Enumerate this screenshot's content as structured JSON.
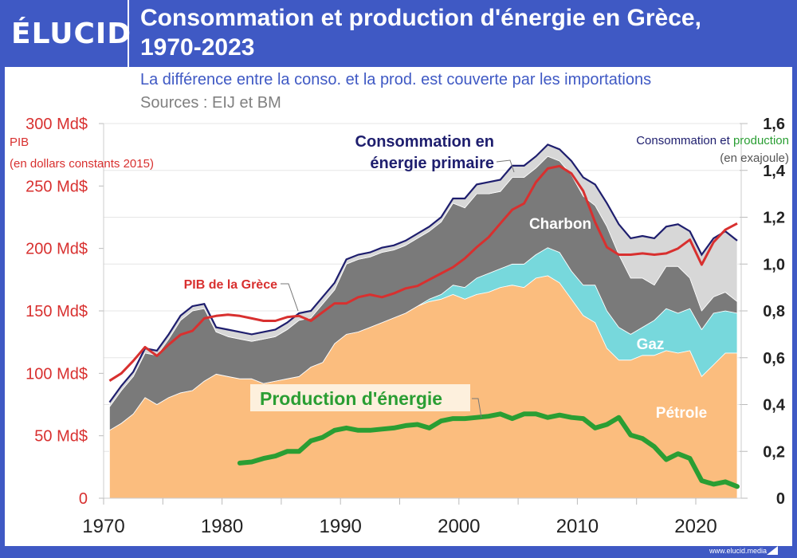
{
  "header": {
    "logo": "ÉLUCID",
    "title_line1": "Consommation et production d'énergie en Grèce,",
    "title_line2": "1970-2023"
  },
  "footer": {
    "url": "www.elucid.media"
  },
  "colors": {
    "frame": "#3f59c4",
    "oil": "#fbbd7e",
    "gas": "#77d8dc",
    "coal": "#7a7a7a",
    "other": "#d7d7d7",
    "total": "#1e1e6e",
    "gdp": "#d8302f",
    "production": "#2a9e33"
  },
  "chart_data": {
    "type": "area",
    "title": "Consommation et production d'énergie en Grèce, 1970-2023",
    "subtitle": "La différence entre la conso. et la prod. est couverte par les importations",
    "source": "Sources : EIJ et BM",
    "left_axis": {
      "label_line1": "PIB",
      "label_line2": "(en dollars constants 2015)",
      "ylim": [
        0,
        300
      ],
      "ticks": [
        "0",
        "50 Md$",
        "100 Md$",
        "150 Md$",
        "200 Md$",
        "250 Md$",
        "300 Md$"
      ],
      "tick_values": [
        0,
        50,
        100,
        150,
        200,
        250,
        300
      ]
    },
    "right_axis": {
      "label_prefix": "Consommation et ",
      "label_highlight": "production",
      "label_line2": "(en exajoule)",
      "ylim": [
        0,
        1.6
      ],
      "ticks": [
        "0",
        "0,2",
        "0,4",
        "0,6",
        "0,8",
        "1,0",
        "1,2",
        "1,4",
        "1,6"
      ],
      "tick_values": [
        0,
        0.2,
        0.4,
        0.6,
        0.8,
        1.0,
        1.2,
        1.4,
        1.6
      ]
    },
    "x_ticks": [
      "1970",
      "1980",
      "1990",
      "2000",
      "2010",
      "2020"
    ],
    "x_tick_values": [
      1970,
      1980,
      1990,
      2000,
      2010,
      2020
    ],
    "grid": true,
    "years": [
      1970,
      1971,
      1972,
      1973,
      1974,
      1975,
      1976,
      1977,
      1978,
      1979,
      1980,
      1981,
      1982,
      1983,
      1984,
      1985,
      1986,
      1987,
      1988,
      1989,
      1990,
      1991,
      1992,
      1993,
      1994,
      1995,
      1996,
      1997,
      1998,
      1999,
      2000,
      2001,
      2002,
      2003,
      2004,
      2005,
      2006,
      2007,
      2008,
      2009,
      2010,
      2011,
      2012,
      2013,
      2014,
      2015,
      2016,
      2017,
      2018,
      2019,
      2020,
      2021,
      2022,
      2023
    ],
    "stack": [
      {
        "name": "Pétrole",
        "color": "#fbbd7e",
        "values": [
          0.29,
          0.32,
          0.36,
          0.43,
          0.4,
          0.43,
          0.45,
          0.46,
          0.5,
          0.53,
          0.52,
          0.51,
          0.51,
          0.49,
          0.5,
          0.51,
          0.52,
          0.56,
          0.58,
          0.66,
          0.7,
          0.71,
          0.73,
          0.75,
          0.77,
          0.79,
          0.82,
          0.84,
          0.85,
          0.87,
          0.85,
          0.87,
          0.88,
          0.9,
          0.91,
          0.9,
          0.94,
          0.95,
          0.92,
          0.85,
          0.78,
          0.75,
          0.64,
          0.59,
          0.59,
          0.61,
          0.61,
          0.63,
          0.62,
          0.63,
          0.52,
          0.57,
          0.62,
          0.62
        ]
      },
      {
        "name": "Gaz",
        "color": "#77d8dc",
        "values": [
          0,
          0,
          0,
          0,
          0,
          0,
          0,
          0,
          0,
          0,
          0,
          0,
          0,
          0,
          0,
          0,
          0,
          0,
          0,
          0,
          0,
          0,
          0,
          0,
          0,
          0,
          0,
          0.01,
          0.02,
          0.04,
          0.05,
          0.07,
          0.08,
          0.08,
          0.09,
          0.1,
          0.1,
          0.12,
          0.13,
          0.12,
          0.13,
          0.16,
          0.16,
          0.14,
          0.11,
          0.12,
          0.15,
          0.18,
          0.17,
          0.18,
          0.2,
          0.22,
          0.18,
          0.17
        ]
      },
      {
        "name": "Charbon",
        "color": "#7a7a7a",
        "values": [
          0.1,
          0.14,
          0.16,
          0.19,
          0.21,
          0.25,
          0.31,
          0.34,
          0.31,
          0.18,
          0.17,
          0.17,
          0.16,
          0.19,
          0.19,
          0.21,
          0.24,
          0.21,
          0.25,
          0.23,
          0.3,
          0.31,
          0.3,
          0.3,
          0.29,
          0.29,
          0.29,
          0.29,
          0.31,
          0.35,
          0.34,
          0.36,
          0.34,
          0.33,
          0.37,
          0.37,
          0.37,
          0.39,
          0.39,
          0.41,
          0.38,
          0.34,
          0.36,
          0.31,
          0.24,
          0.21,
          0.15,
          0.18,
          0.2,
          0.13,
          0.08,
          0.07,
          0.08,
          0.05
        ]
      },
      {
        "name": "",
        "color": "#d7d7d7",
        "values": [
          0.02,
          0.02,
          0.02,
          0.02,
          0.02,
          0.02,
          0.02,
          0.02,
          0.02,
          0.02,
          0.03,
          0.03,
          0.03,
          0.03,
          0.03,
          0.03,
          0.03,
          0.03,
          0.03,
          0.03,
          0.02,
          0.02,
          0.02,
          0.02,
          0.02,
          0.02,
          0.02,
          0.02,
          0.02,
          0.02,
          0.04,
          0.04,
          0.05,
          0.05,
          0.05,
          0.05,
          0.05,
          0.05,
          0.05,
          0.06,
          0.08,
          0.09,
          0.1,
          0.13,
          0.17,
          0.18,
          0.2,
          0.17,
          0.18,
          0.2,
          0.24,
          0.25,
          0.26,
          0.26
        ]
      }
    ],
    "total": {
      "name": "Consommation en énergie primaire",
      "label_line1": "Consommation en",
      "label_line2": "énergie primaire",
      "axis": "right"
    },
    "production": {
      "name": "Production d'énergie",
      "axis": "right",
      "start_year": 1981,
      "values": [
        0.15,
        0.155,
        0.17,
        0.18,
        0.2,
        0.2,
        0.245,
        0.26,
        0.29,
        0.3,
        0.29,
        0.29,
        0.295,
        0.3,
        0.31,
        0.315,
        0.3,
        0.33,
        0.34,
        0.34,
        0.345,
        0.35,
        0.36,
        0.34,
        0.36,
        0.36,
        0.345,
        0.355,
        0.345,
        0.34,
        0.3,
        0.315,
        0.345,
        0.27,
        0.255,
        0.22,
        0.165,
        0.19,
        0.17,
        0.075,
        0.06,
        0.07,
        0.05
      ]
    },
    "gdp": {
      "name": "PIB de la Grèce",
      "axis": "left",
      "unit": "Md$",
      "values": [
        94,
        100,
        110,
        121,
        114,
        123,
        131,
        134,
        144,
        146,
        147,
        146,
        144,
        142,
        142,
        145,
        146,
        142,
        149,
        156,
        156,
        161,
        163,
        161,
        164,
        168,
        170,
        175,
        180,
        185,
        192,
        201,
        209,
        220,
        231,
        236,
        253,
        264,
        266,
        260,
        246,
        221,
        201,
        195,
        195,
        196,
        195,
        196,
        200,
        207,
        187,
        205,
        215,
        220
      ]
    },
    "area_labels": {
      "oil": "Pétrole",
      "gas": "Gaz",
      "coal": "Charbon"
    }
  }
}
